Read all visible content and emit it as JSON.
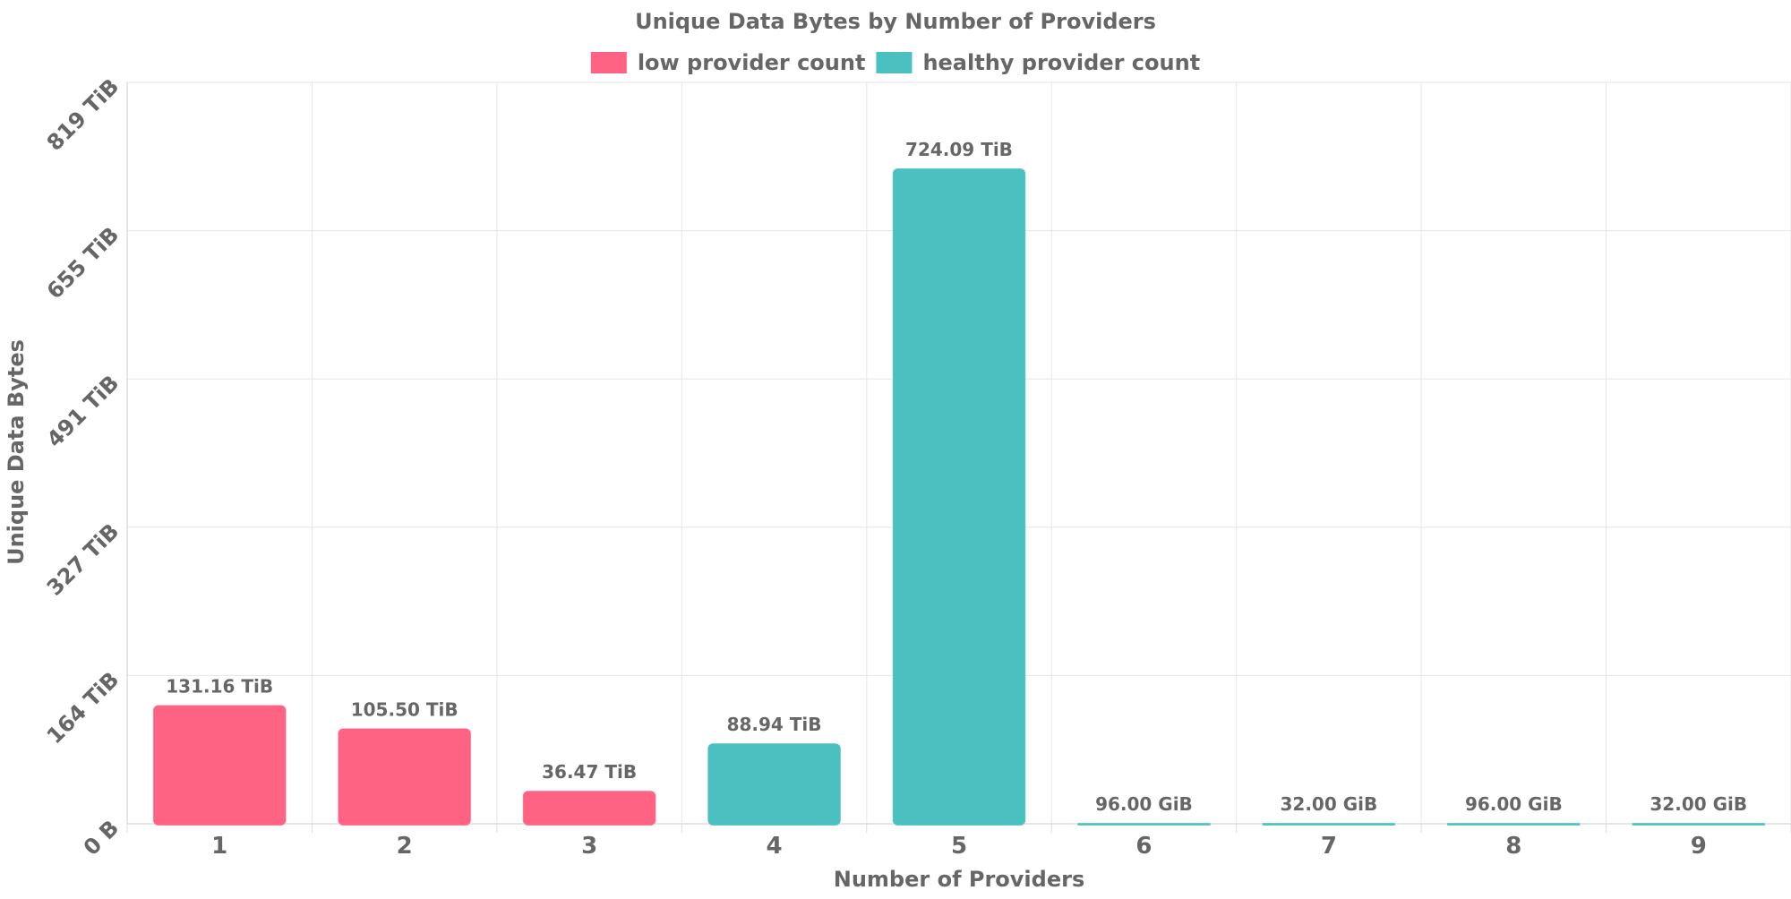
{
  "chart_data": {
    "type": "bar",
    "title": "Unique Data Bytes by Number of Providers",
    "xlabel": "Number of Providers",
    "ylabel": "Unique Data Bytes",
    "categories": [
      "1",
      "2",
      "3",
      "4",
      "5",
      "6",
      "7",
      "8",
      "9"
    ],
    "values_tib": [
      131.16,
      105.5,
      36.47,
      88.94,
      724.09,
      0.09375,
      0.03125,
      0.09375,
      0.03125
    ],
    "value_labels": [
      "131.16 TiB",
      "105.50 TiB",
      "36.47 TiB",
      "88.94 TiB",
      "724.09 TiB",
      "96.00 GiB",
      "32.00 GiB",
      "96.00 GiB",
      "32.00 GiB"
    ],
    "bar_series": [
      "low provider count",
      "low provider count",
      "low provider count",
      "healthy provider count",
      "healthy provider count",
      "healthy provider count",
      "healthy provider count",
      "healthy provider count",
      "healthy provider count"
    ],
    "legend": [
      {
        "name": "low provider count",
        "color": "#ff6384"
      },
      {
        "name": "healthy provider count",
        "color": "#4bc0c0"
      }
    ],
    "legend_position": "top",
    "yticks": [
      "0 B",
      "164 TiB",
      "327 TiB",
      "491 TiB",
      "655 TiB",
      "819 TiB"
    ],
    "ylim_tib": [
      0,
      819
    ],
    "grid": true
  }
}
